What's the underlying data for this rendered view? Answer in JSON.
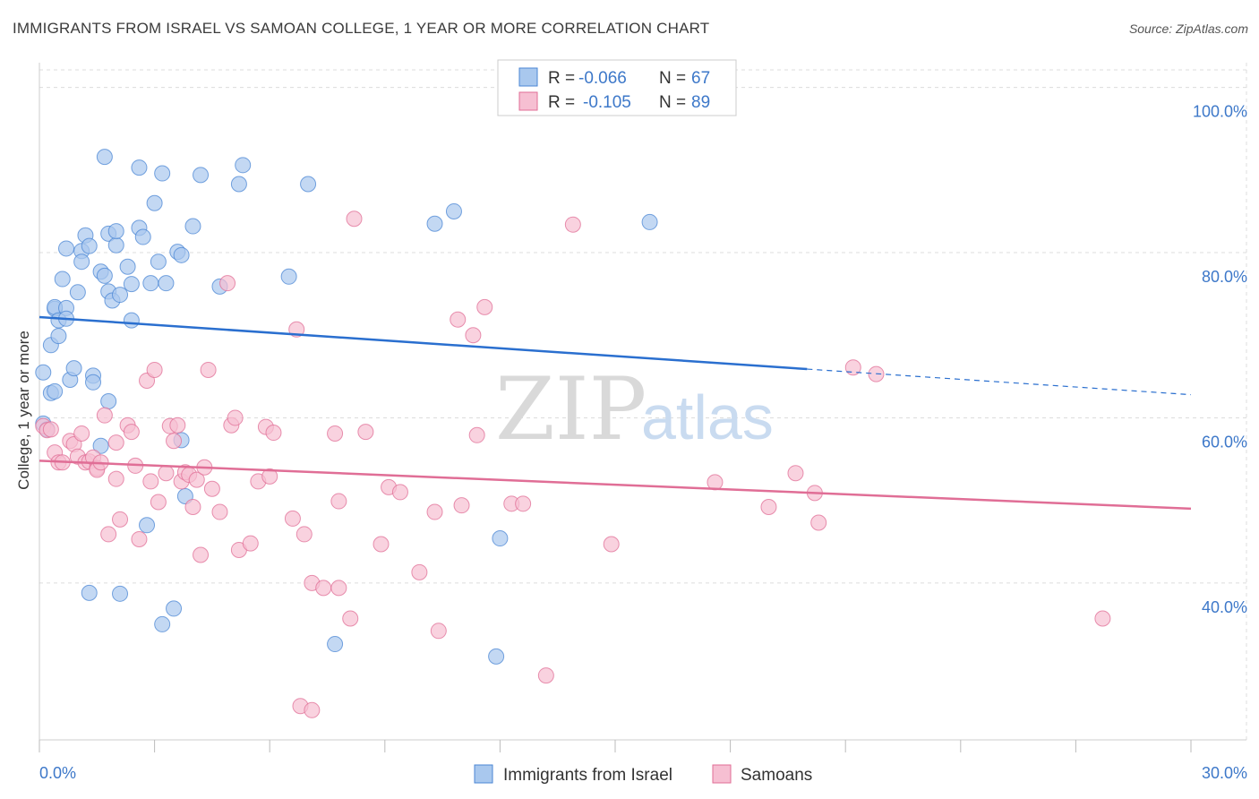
{
  "title": "IMMIGRANTS FROM ISRAEL VS SAMOAN COLLEGE, 1 YEAR OR MORE CORRELATION CHART",
  "source": "Source: ZipAtlas.com",
  "watermark": {
    "part1": "ZIP",
    "part2": "atlas"
  },
  "legend_top": [
    {
      "r_label": "R =",
      "r_value": "-0.066",
      "n_label": "N =",
      "n_value": "67"
    },
    {
      "r_label": "R =",
      "r_value": "-0.105",
      "n_label": "N =",
      "n_value": "89"
    }
  ],
  "legend_bottom": [
    {
      "label": "Immigrants from Israel"
    },
    {
      "label": "Samoans"
    }
  ],
  "chart_data": {
    "type": "scatter",
    "xlabel": "",
    "ylabel": "College, 1 year or more",
    "x_tick_labels": [
      "0.0%",
      "30.0%"
    ],
    "y_tick_labels": [
      "100.0%",
      "80.0%",
      "60.0%",
      "40.0%"
    ],
    "y_tick_values": [
      100,
      80,
      60,
      40
    ],
    "xlim": [
      0,
      30
    ],
    "ylim": [
      21,
      103
    ],
    "grid": "horizontal dashed",
    "colors": {
      "israel": "#4a86d4",
      "israel_fill": "#a9c8ee",
      "samoan": "#e06e96",
      "samoan_fill": "#f6bfd2"
    },
    "series": [
      {
        "name": "Immigrants from Israel",
        "color": "#4a86d4",
        "trend": {
          "x0": 0,
          "y0": 72.2,
          "x1": 20,
          "y1": 65.9,
          "dash_x1": 30,
          "dash_y1": 62.8
        },
        "points": [
          [
            0.1,
            65.5
          ],
          [
            0.1,
            59.3
          ],
          [
            0.3,
            68.8
          ],
          [
            0.3,
            63.0
          ],
          [
            0.4,
            63.2
          ],
          [
            0.4,
            73.2
          ],
          [
            0.4,
            73.4
          ],
          [
            0.5,
            71.8
          ],
          [
            0.5,
            69.9
          ],
          [
            0.6,
            76.8
          ],
          [
            0.7,
            73.3
          ],
          [
            0.7,
            72.0
          ],
          [
            0.7,
            80.5
          ],
          [
            0.8,
            64.6
          ],
          [
            0.9,
            66.0
          ],
          [
            1.0,
            75.2
          ],
          [
            1.1,
            80.2
          ],
          [
            1.1,
            78.9
          ],
          [
            1.2,
            82.1
          ],
          [
            1.3,
            80.8
          ],
          [
            1.4,
            65.1
          ],
          [
            1.4,
            64.3
          ],
          [
            1.6,
            77.7
          ],
          [
            1.6,
            56.6
          ],
          [
            1.7,
            77.2
          ],
          [
            1.7,
            91.6
          ],
          [
            1.8,
            82.3
          ],
          [
            1.8,
            75.3
          ],
          [
            1.8,
            62.0
          ],
          [
            1.9,
            74.2
          ],
          [
            2.0,
            80.9
          ],
          [
            2.0,
            82.6
          ],
          [
            2.1,
            74.9
          ],
          [
            2.3,
            78.3
          ],
          [
            2.4,
            76.2
          ],
          [
            2.4,
            71.8
          ],
          [
            2.6,
            83.0
          ],
          [
            2.6,
            90.3
          ],
          [
            2.7,
            81.9
          ],
          [
            2.9,
            76.3
          ],
          [
            3.0,
            86.0
          ],
          [
            3.1,
            78.9
          ],
          [
            3.2,
            89.6
          ],
          [
            3.3,
            76.3
          ],
          [
            3.6,
            80.1
          ],
          [
            3.7,
            79.7
          ],
          [
            4.0,
            83.2
          ],
          [
            4.2,
            89.4
          ],
          [
            4.7,
            75.9
          ],
          [
            5.2,
            88.3
          ],
          [
            5.3,
            90.6
          ],
          [
            6.5,
            77.1
          ],
          [
            7.0,
            88.3
          ],
          [
            10.3,
            83.5
          ],
          [
            10.8,
            85.0
          ],
          [
            15.9,
            83.7
          ],
          [
            1.3,
            38.8
          ],
          [
            2.1,
            38.7
          ],
          [
            2.8,
            47.0
          ],
          [
            3.2,
            35.0
          ],
          [
            3.5,
            36.9
          ],
          [
            3.7,
            57.3
          ],
          [
            3.8,
            50.5
          ],
          [
            7.7,
            32.6
          ],
          [
            11.9,
            31.1
          ],
          [
            12.0,
            45.4
          ],
          [
            0.2,
            58.6
          ]
        ]
      },
      {
        "name": "Samoans",
        "color": "#e06e96",
        "trend": {
          "x0": 0,
          "y0": 54.8,
          "x1": 30,
          "y1": 49.0
        },
        "points": [
          [
            0.1,
            59.0
          ],
          [
            0.2,
            58.5
          ],
          [
            0.3,
            58.6
          ],
          [
            0.4,
            55.8
          ],
          [
            0.5,
            54.6
          ],
          [
            0.6,
            54.6
          ],
          [
            0.8,
            57.2
          ],
          [
            0.9,
            56.8
          ],
          [
            1.0,
            55.3
          ],
          [
            1.1,
            58.1
          ],
          [
            1.2,
            54.6
          ],
          [
            1.3,
            54.7
          ],
          [
            1.4,
            55.2
          ],
          [
            1.5,
            53.9
          ],
          [
            1.5,
            53.7
          ],
          [
            1.6,
            54.6
          ],
          [
            1.7,
            60.3
          ],
          [
            1.8,
            45.9
          ],
          [
            2.0,
            57.0
          ],
          [
            2.0,
            52.6
          ],
          [
            2.1,
            47.7
          ],
          [
            2.3,
            59.1
          ],
          [
            2.4,
            58.3
          ],
          [
            2.5,
            54.2
          ],
          [
            2.6,
            45.3
          ],
          [
            2.8,
            64.5
          ],
          [
            2.9,
            52.3
          ],
          [
            3.0,
            65.8
          ],
          [
            3.1,
            49.8
          ],
          [
            3.3,
            53.3
          ],
          [
            3.4,
            59.0
          ],
          [
            3.5,
            57.2
          ],
          [
            3.6,
            59.1
          ],
          [
            3.7,
            52.3
          ],
          [
            3.8,
            53.4
          ],
          [
            3.9,
            53.1
          ],
          [
            4.0,
            49.2
          ],
          [
            4.1,
            52.5
          ],
          [
            4.2,
            43.4
          ],
          [
            4.3,
            54.0
          ],
          [
            4.4,
            65.8
          ],
          [
            4.5,
            51.4
          ],
          [
            4.7,
            48.6
          ],
          [
            4.9,
            76.3
          ],
          [
            5.0,
            59.1
          ],
          [
            5.1,
            60.0
          ],
          [
            5.2,
            44.0
          ],
          [
            5.5,
            44.8
          ],
          [
            5.7,
            52.3
          ],
          [
            5.9,
            58.9
          ],
          [
            6.0,
            52.9
          ],
          [
            6.1,
            58.2
          ],
          [
            6.6,
            47.8
          ],
          [
            6.7,
            70.7
          ],
          [
            6.9,
            45.9
          ],
          [
            7.1,
            40.0
          ],
          [
            7.4,
            39.4
          ],
          [
            7.7,
            58.1
          ],
          [
            7.8,
            49.9
          ],
          [
            7.8,
            39.4
          ],
          [
            8.1,
            35.7
          ],
          [
            8.2,
            84.1
          ],
          [
            8.5,
            58.3
          ],
          [
            8.9,
            44.7
          ],
          [
            9.1,
            51.6
          ],
          [
            9.4,
            51.0
          ],
          [
            9.9,
            41.3
          ],
          [
            10.3,
            48.6
          ],
          [
            10.4,
            34.2
          ],
          [
            10.9,
            71.9
          ],
          [
            11.0,
            49.4
          ],
          [
            11.3,
            70.0
          ],
          [
            11.4,
            57.9
          ],
          [
            11.6,
            73.4
          ],
          [
            12.3,
            49.6
          ],
          [
            12.6,
            49.6
          ],
          [
            13.2,
            28.8
          ],
          [
            13.9,
            83.4
          ],
          [
            14.9,
            44.7
          ],
          [
            17.6,
            52.2
          ],
          [
            19.0,
            49.2
          ],
          [
            19.7,
            53.3
          ],
          [
            20.2,
            50.9
          ],
          [
            20.3,
            47.3
          ],
          [
            21.2,
            66.1
          ],
          [
            21.8,
            65.3
          ],
          [
            27.7,
            35.7
          ],
          [
            6.8,
            25.1
          ],
          [
            7.1,
            24.6
          ]
        ]
      }
    ]
  }
}
